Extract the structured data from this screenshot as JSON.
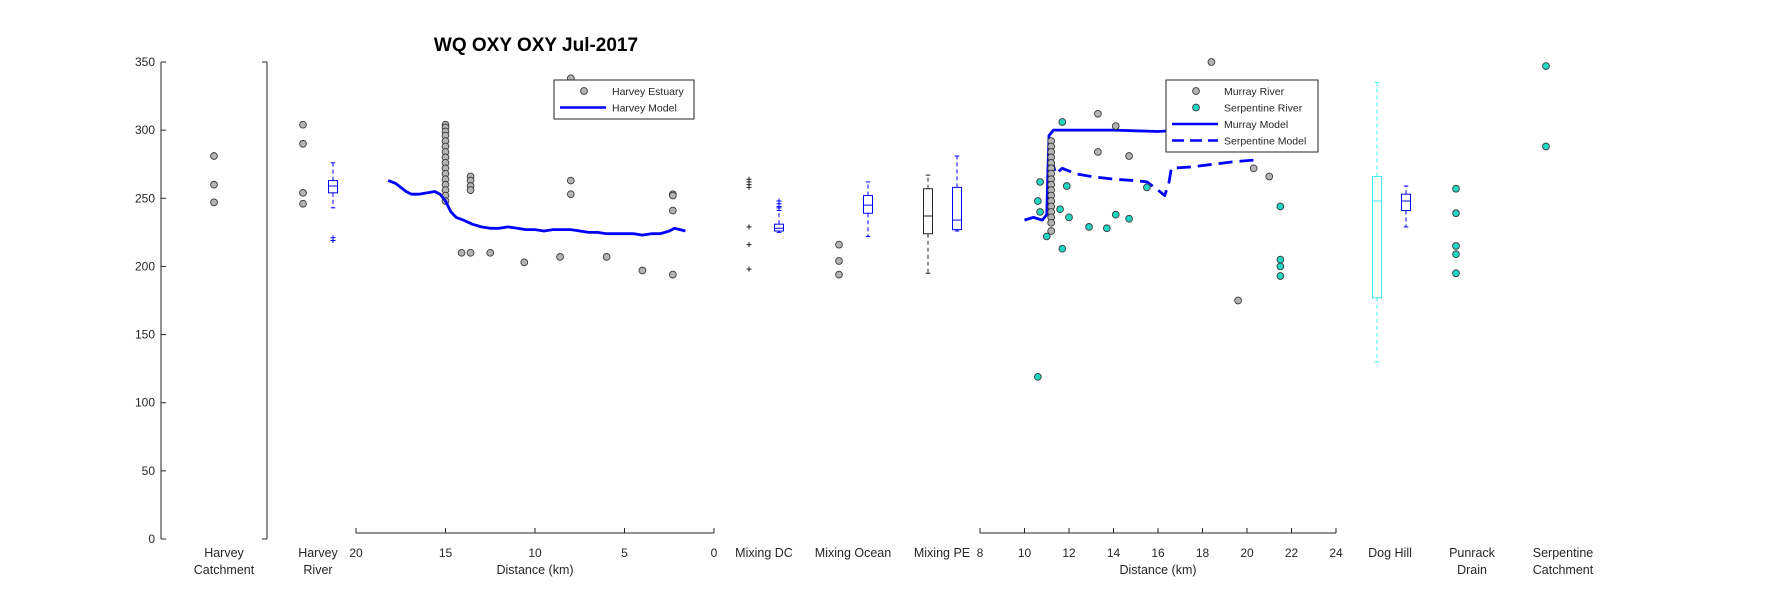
{
  "title": "WQ OXY OXY Jul-2017",
  "colors": {
    "axis": "#262626",
    "data_grey": "#b4b4b4",
    "data_cyan": "#20d6c4",
    "model_blue": "#0000ff",
    "mixing_pe_black": "#222222",
    "dog_hill_cyan": "#3ff0f0"
  },
  "chart_data": [
    {
      "id": "harvey-catchment",
      "type": "scatter",
      "ylim": [
        0,
        350
      ],
      "yticks": [
        0,
        50,
        100,
        150,
        200,
        250,
        300,
        350
      ],
      "category_label": [
        "Harvey",
        "Catchment"
      ],
      "series": [
        {
          "color": "#b4b4b4",
          "values": [
            281,
            260,
            247
          ]
        }
      ]
    },
    {
      "id": "harvey-river",
      "type": "box",
      "ylim": [
        0,
        350
      ],
      "category_label": [
        "Harvey",
        "River"
      ],
      "points": [
        304,
        290,
        254,
        246
      ],
      "box": {
        "color": "#0000ff",
        "whisker_low": 243,
        "q1": 254,
        "median": 259,
        "q3": 263,
        "whisker_high": 276,
        "outliers": [
          221,
          219
        ]
      }
    },
    {
      "id": "harvey-estuary",
      "type": "scatter-line",
      "xlabel": "Distance (km)",
      "xlim": [
        20,
        0
      ],
      "xticks": [
        20,
        15,
        10,
        5,
        0
      ],
      "ylim": [
        0,
        350
      ],
      "legend": {
        "placement": "top-right",
        "entries": [
          "Harvey Estuary",
          "Harvey Model"
        ]
      },
      "scatter": {
        "name": "Harvey Estuary",
        "color": "#b4b4b4",
        "points": [
          [
            15,
            304
          ],
          [
            15,
            302
          ],
          [
            15,
            299
          ],
          [
            15,
            296
          ],
          [
            15,
            292
          ],
          [
            15,
            288
          ],
          [
            15,
            284
          ],
          [
            15,
            280
          ],
          [
            15,
            276
          ],
          [
            15,
            272
          ],
          [
            15,
            268
          ],
          [
            15,
            264
          ],
          [
            15,
            260
          ],
          [
            15,
            256
          ],
          [
            15,
            252
          ],
          [
            15,
            248
          ],
          [
            13.6,
            266
          ],
          [
            13.6,
            263
          ],
          [
            13.6,
            259
          ],
          [
            13.6,
            256
          ],
          [
            14.1,
            210
          ],
          [
            13.6,
            210
          ],
          [
            12.5,
            210
          ],
          [
            10.6,
            203
          ],
          [
            8.6,
            207
          ],
          [
            8.0,
            263
          ],
          [
            8.0,
            253
          ],
          [
            8.0,
            338
          ],
          [
            7.5,
            327
          ],
          [
            6.0,
            207
          ],
          [
            4.0,
            197
          ],
          [
            2.3,
            253
          ],
          [
            2.3,
            252
          ],
          [
            2.3,
            241
          ],
          [
            2.3,
            194
          ]
        ]
      },
      "model": {
        "name": "Harvey Model",
        "color": "#0000ff",
        "points": [
          [
            18.2,
            263
          ],
          [
            17.8,
            261
          ],
          [
            17.5,
            258
          ],
          [
            17.2,
            255
          ],
          [
            16.9,
            253
          ],
          [
            16.5,
            253
          ],
          [
            16.0,
            254
          ],
          [
            15.6,
            255
          ],
          [
            15.3,
            253
          ],
          [
            15.0,
            248
          ],
          [
            14.7,
            240
          ],
          [
            14.4,
            236
          ],
          [
            14.0,
            234
          ],
          [
            13.5,
            231
          ],
          [
            13.0,
            229
          ],
          [
            12.5,
            228
          ],
          [
            12.0,
            228
          ],
          [
            11.5,
            229
          ],
          [
            11.0,
            228
          ],
          [
            10.5,
            227
          ],
          [
            10.0,
            227
          ],
          [
            9.5,
            226
          ],
          [
            9.0,
            227
          ],
          [
            8.5,
            227
          ],
          [
            8.0,
            227
          ],
          [
            7.5,
            226
          ],
          [
            7.0,
            225
          ],
          [
            6.5,
            225
          ],
          [
            6.0,
            224
          ],
          [
            5.5,
            224
          ],
          [
            5.0,
            224
          ],
          [
            4.5,
            224
          ],
          [
            4.0,
            223
          ],
          [
            3.5,
            224
          ],
          [
            3.0,
            224
          ],
          [
            2.5,
            226
          ],
          [
            2.2,
            228
          ],
          [
            1.9,
            227
          ],
          [
            1.6,
            226
          ]
        ]
      }
    },
    {
      "id": "mixing-dc",
      "type": "box",
      "ylim": [
        0,
        350
      ],
      "category_label": "Mixing DC",
      "left_points": {
        "color": "#222222",
        "values": [
          262,
          264,
          260,
          258,
          229,
          216,
          198
        ]
      },
      "box": {
        "color": "#0000ff",
        "whisker_low": 225,
        "q1": 226,
        "median": 228,
        "q3": 231,
        "whisker_high": 241,
        "outliers": [
          248,
          246,
          244,
          243
        ]
      }
    },
    {
      "id": "mixing-ocean",
      "type": "box",
      "ylim": [
        0,
        350
      ],
      "category_label": "Mixing Ocean",
      "points": [
        216,
        204,
        194
      ],
      "box": {
        "color": "#0000ff",
        "whisker_low": 222,
        "q1": 239,
        "median": 245,
        "q3": 252,
        "whisker_high": 262,
        "outliers": []
      }
    },
    {
      "id": "mixing-pe",
      "type": "box",
      "ylim": [
        0,
        350
      ],
      "category_label": "Mixing PE",
      "boxes": [
        {
          "color": "#222222",
          "whisker_low": 195,
          "q1": 224,
          "median": 237,
          "q3": 257,
          "whisker_high": 267
        },
        {
          "color": "#0000ff",
          "whisker_low": 226,
          "q1": 227,
          "median": 234,
          "q3": 258,
          "whisker_high": 281
        }
      ]
    },
    {
      "id": "murray-serpentine",
      "type": "scatter-line",
      "xlabel": "Distance (km)",
      "xlim": [
        8,
        24
      ],
      "xticks": [
        8,
        10,
        12,
        14,
        16,
        18,
        20,
        22,
        24
      ],
      "ylim": [
        0,
        350
      ],
      "legend": {
        "placement": "top-right",
        "entries": [
          "Murray River",
          "Serpentine River",
          "Murray Model",
          "Serpentine Model"
        ]
      },
      "series": [
        {
          "name": "Murray River",
          "color": "#b4b4b4",
          "points": [
            [
              11.2,
              292
            ],
            [
              11.2,
              288
            ],
            [
              11.2,
              284
            ],
            [
              11.2,
              280
            ],
            [
              11.2,
              276
            ],
            [
              11.2,
              272
            ],
            [
              11.2,
              268
            ],
            [
              11.2,
              264
            ],
            [
              11.2,
              260
            ],
            [
              11.2,
              256
            ],
            [
              11.2,
              252
            ],
            [
              11.2,
              248
            ],
            [
              11.2,
              244
            ],
            [
              11.2,
              240
            ],
            [
              11.2,
              236
            ],
            [
              11.2,
              232
            ],
            [
              11.2,
              226
            ],
            [
              18.4,
              350
            ],
            [
              13.3,
              312
            ],
            [
              14.1,
              303
            ],
            [
              13.3,
              284
            ],
            [
              14.7,
              281
            ],
            [
              20.3,
              272
            ],
            [
              21.0,
              266
            ],
            [
              19.6,
              175
            ]
          ]
        },
        {
          "name": "Serpentine River",
          "color": "#20d6c4",
          "points": [
            [
              11.7,
              306
            ],
            [
              10.7,
              262
            ],
            [
              10.6,
              248
            ],
            [
              10.7,
              240
            ],
            [
              11.9,
              259
            ],
            [
              11.6,
              242
            ],
            [
              12.0,
              236
            ],
            [
              11.0,
              222
            ],
            [
              11.7,
              213
            ],
            [
              12.9,
              229
            ],
            [
              13.7,
              228
            ],
            [
              14.1,
              238
            ],
            [
              14.7,
              235
            ],
            [
              15.5,
              258
            ],
            [
              21.5,
              244
            ],
            [
              21.5,
              205
            ],
            [
              21.5,
              200
            ],
            [
              21.5,
              193
            ],
            [
              10.6,
              119
            ]
          ]
        }
      ],
      "models": [
        {
          "name": "Murray Model",
          "color": "#0000ff",
          "style": "solid",
          "points": [
            [
              10.0,
              234
            ],
            [
              10.4,
              236
            ],
            [
              10.8,
              234
            ],
            [
              11.0,
              238
            ],
            [
              11.05,
              270
            ],
            [
              11.1,
              296
            ],
            [
              11.3,
              300
            ],
            [
              12.0,
              300
            ],
            [
              14.0,
              300
            ],
            [
              16.0,
              299
            ],
            [
              17.0,
              300
            ],
            [
              17.4,
              301
            ]
          ]
        },
        {
          "name": "Serpentine Model",
          "color": "#0000ff",
          "style": "dashed",
          "points": [
            [
              11.2,
              280
            ],
            [
              11.4,
              268
            ],
            [
              11.7,
              272
            ],
            [
              12.0,
              270
            ],
            [
              12.3,
              268
            ],
            [
              13.0,
              266
            ],
            [
              14.0,
              264
            ],
            [
              15.0,
              263
            ],
            [
              15.5,
              262
            ],
            [
              16.0,
              256
            ],
            [
              16.3,
              252
            ],
            [
              16.5,
              262
            ],
            [
              16.6,
              272
            ],
            [
              17.5,
              273
            ],
            [
              18.5,
              275
            ],
            [
              19.5,
              277
            ],
            [
              20.3,
              278
            ]
          ]
        }
      ]
    },
    {
      "id": "dog-hill",
      "type": "box",
      "ylim": [
        0,
        350
      ],
      "category_label": "Dog Hill",
      "boxes": [
        {
          "color": "#3ff0f0",
          "whisker_low": 130,
          "q1": 177,
          "median": 248,
          "q3": 266,
          "whisker_high": 335
        },
        {
          "color": "#0000ff",
          "whisker_low": 229,
          "q1": 241,
          "median": 248,
          "q3": 253,
          "whisker_high": 259
        }
      ]
    },
    {
      "id": "punrack-drain",
      "type": "scatter",
      "ylim": [
        0,
        350
      ],
      "category_label": [
        "Punrack",
        "Drain"
      ],
      "series": [
        {
          "color": "#20d6c4",
          "values": [
            257,
            239,
            215,
            209,
            195
          ]
        }
      ]
    },
    {
      "id": "serpentine-catchment",
      "type": "scatter",
      "ylim": [
        0,
        350
      ],
      "category_label": [
        "Serpentine",
        "Catchment"
      ],
      "series": [
        {
          "color": "#20d6c4",
          "values": [
            347,
            288
          ]
        }
      ]
    }
  ]
}
